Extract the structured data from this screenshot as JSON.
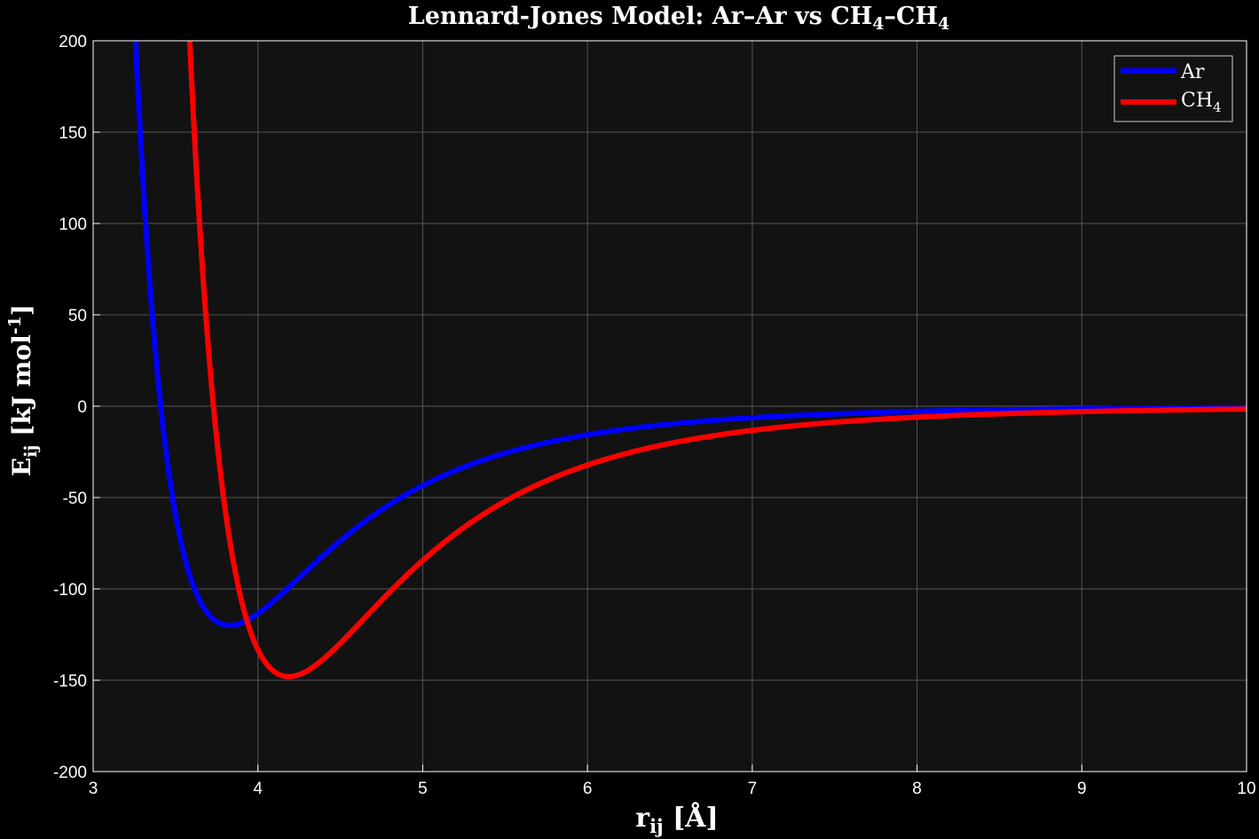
{
  "chart_data": {
    "type": "line",
    "title_parts": {
      "prefix": "Lennard-Jones  Model:  Ar–Ar  vs  CH",
      "sub1": "4",
      "mid": "–CH",
      "sub2": "4"
    },
    "xlabel": {
      "main": "r",
      "sub": "ij",
      "unit": "  [Å]"
    },
    "ylabel": {
      "main": "E",
      "sub": "ij",
      "unit": "  [kJ  mol",
      "sup": "-1",
      "close": "]"
    },
    "xlim": [
      3,
      10
    ],
    "ylim": [
      -200,
      200
    ],
    "x_ticks": [
      "3",
      "4",
      "5",
      "6",
      "7",
      "8",
      "9",
      "10"
    ],
    "x_tick_values": [
      3,
      4,
      5,
      6,
      7,
      8,
      9,
      10
    ],
    "y_ticks": [
      "200",
      "150",
      "100",
      "50",
      "0",
      "-50",
      "-100",
      "-150",
      "-200"
    ],
    "y_tick_values": [
      200,
      150,
      100,
      50,
      0,
      -50,
      -100,
      -150,
      -200
    ],
    "grid": true,
    "legend_position": "top-right",
    "series": [
      {
        "name": "Ar",
        "legend_main": "Ar",
        "legend_sub": "",
        "color": "#0000ff",
        "model": "lennard-jones",
        "epsilon": 120,
        "sigma": 3.41,
        "x_start": 3.25,
        "x_end": 10
      },
      {
        "name": "CH4",
        "legend_main": "CH",
        "legend_sub": "4",
        "color": "#ff0000",
        "model": "lennard-jones",
        "epsilon": 148,
        "sigma": 3.73,
        "x_start": 3.55,
        "x_end": 10
      }
    ]
  },
  "colors": {
    "background": "#000000",
    "plot_area": "#121212",
    "grid": "#555555",
    "axis": "#ffffff",
    "text": "#ffffff"
  }
}
